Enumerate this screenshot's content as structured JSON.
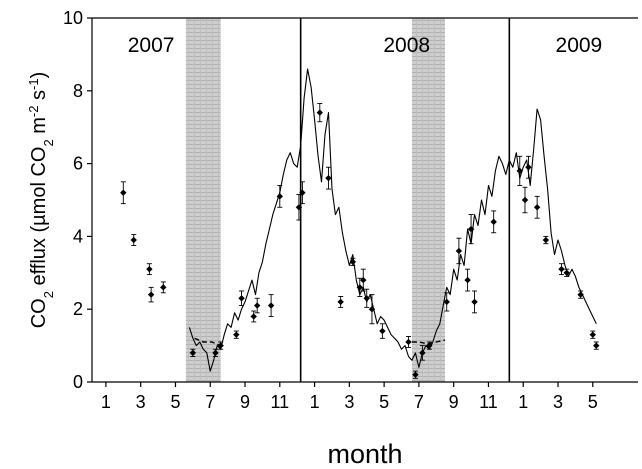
{
  "chart_data": {
    "type": "line",
    "xlabel": "month",
    "ylabel_parts": {
      "a": "CO",
      "b": "2",
      "c": " efflux (",
      "mu": "µ",
      "d": "mol CO",
      "e": "2",
      "f": " m",
      "g": "-2",
      "h": " s",
      "i": "-1",
      "j": ")"
    },
    "x_tick_labels": [
      "1",
      "3",
      "5",
      "7",
      "9",
      "11",
      "1",
      "3",
      "5",
      "7",
      "9",
      "11",
      "1",
      "3",
      "5"
    ],
    "x_ticks": [
      1,
      3,
      5,
      7,
      9,
      11,
      13,
      15,
      17,
      19,
      21,
      23,
      25,
      27,
      29
    ],
    "xlim": [
      0.2,
      31.6
    ],
    "ylim": [
      0,
      10
    ],
    "y_ticks": [
      0,
      2,
      4,
      6,
      8,
      10
    ],
    "grid": false,
    "year_labels": [
      {
        "text": "2007",
        "x": 3.6
      },
      {
        "text": "2008",
        "x": 18.3
      },
      {
        "text": "2009",
        "x": 28.2
      }
    ],
    "year_dividers": [
      12.2,
      24.2
    ],
    "snow_periods": [
      [
        5.6,
        7.6
      ],
      [
        18.6,
        20.5
      ]
    ],
    "colors": {
      "line": "#000000",
      "points": "#000000",
      "shade": "#b4b4b4"
    },
    "series": [
      {
        "style": "line",
        "x": [
          5.8,
          6.0,
          6.2,
          6.4,
          6.6,
          6.8,
          7.0,
          7.2,
          7.4,
          7.6,
          7.8,
          8.0,
          8.2,
          8.4,
          8.6,
          8.8,
          9.0,
          9.2,
          9.4,
          9.6,
          9.8,
          10.0,
          10.2,
          10.4,
          10.6,
          10.8,
          11.0,
          11.2,
          11.4,
          11.6,
          11.8,
          12.0,
          12.2,
          12.4,
          12.6,
          12.8,
          13.0,
          13.2,
          13.4,
          13.6,
          13.8,
          14.0,
          14.2,
          14.4,
          14.6,
          14.8,
          15.0,
          15.2,
          15.4,
          15.6,
          15.8,
          16.0,
          16.2,
          16.4,
          16.6,
          16.8,
          17.0,
          17.2,
          17.4,
          17.6,
          17.8,
          18.0,
          18.2,
          18.4,
          18.6,
          18.8,
          19.0,
          19.2,
          19.4,
          19.6,
          19.8,
          20.0,
          20.2,
          20.4,
          20.6,
          20.8,
          21.0,
          21.2,
          21.4,
          21.6,
          21.8,
          22.0,
          22.2,
          22.4,
          22.6,
          22.8,
          23.0,
          23.2,
          23.4,
          23.6,
          23.8,
          24.0,
          24.2,
          24.4,
          24.6,
          24.8,
          25.0,
          25.2,
          25.4,
          25.6,
          25.8,
          26.0,
          26.2,
          26.4,
          26.6,
          26.8,
          27.0,
          27.2,
          27.4,
          27.6,
          27.8,
          28.0,
          28.2,
          28.4,
          28.6,
          28.8,
          29.0,
          29.2
        ],
        "y": [
          1.5,
          1.2,
          1.0,
          1.1,
          0.9,
          0.8,
          0.3,
          0.6,
          1.0,
          0.9,
          1.3,
          1.6,
          1.5,
          1.9,
          1.7,
          2.0,
          2.2,
          2.5,
          2.8,
          2.4,
          3.0,
          3.3,
          3.8,
          4.2,
          4.6,
          4.9,
          5.2,
          5.7,
          6.1,
          6.3,
          6.0,
          5.9,
          6.5,
          7.8,
          8.6,
          8.1,
          7.2,
          6.2,
          5.5,
          6.8,
          7.4,
          5.3,
          4.6,
          4.8,
          4.1,
          3.6,
          3.2,
          3.5,
          2.8,
          2.4,
          2.6,
          2.2,
          2.4,
          2.0,
          1.6,
          1.8,
          1.7,
          1.5,
          1.3,
          1.2,
          1.1,
          0.9,
          1.0,
          0.7,
          0.6,
          0.8,
          0.4,
          0.8,
          1.0,
          0.9,
          1.1,
          1.4,
          1.6,
          2.1,
          2.6,
          2.4,
          3.1,
          2.8,
          3.5,
          3.2,
          4.2,
          3.8,
          4.6,
          4.3,
          5.0,
          4.6,
          5.4,
          5.1,
          5.8,
          6.2,
          6.0,
          5.7,
          6.1,
          5.9,
          6.3,
          5.6,
          5.9,
          6.1,
          5.4,
          6.4,
          7.5,
          7.2,
          6.2,
          5.3,
          4.1,
          3.5,
          3.9,
          3.6,
          3.2,
          2.9,
          3.1,
          2.9,
          2.6,
          2.4,
          2.2,
          2.0,
          1.8,
          1.6
        ]
      },
      {
        "style": "dashed",
        "x": [
          6.1,
          6.6,
          7.1,
          7.6,
          18.6,
          19.0,
          19.5,
          20.0,
          20.5
        ],
        "y": [
          1.2,
          1.1,
          1.1,
          1.0,
          1.1,
          1.1,
          1.05,
          1.1,
          1.15
        ]
      },
      {
        "style": "points",
        "x": [
          2.0,
          2.6,
          3.5,
          3.6,
          4.3,
          6.0,
          7.3,
          7.6,
          8.5,
          8.8,
          9.5,
          9.7,
          10.5,
          11.0,
          12.1,
          12.3,
          13.3,
          13.8,
          14.5,
          15.2,
          15.6,
          15.8,
          16.0,
          16.3,
          16.9,
          18.4,
          18.8,
          19.2,
          19.6,
          20.6,
          21.3,
          21.8,
          22.0,
          22.2,
          23.3,
          24.8,
          25.1,
          25.3,
          25.8,
          26.3,
          27.2,
          27.5,
          28.3,
          29.0,
          29.2
        ],
        "y": [
          5.2,
          3.9,
          3.1,
          2.4,
          2.6,
          0.8,
          0.8,
          1.0,
          1.3,
          2.3,
          1.8,
          2.1,
          2.1,
          5.1,
          4.8,
          5.2,
          7.4,
          5.6,
          2.2,
          3.3,
          2.6,
          2.8,
          2.3,
          2.0,
          1.4,
          1.1,
          0.2,
          0.8,
          1.0,
          2.2,
          3.6,
          2.8,
          4.2,
          2.2,
          4.4,
          5.8,
          5.0,
          5.9,
          4.8,
          3.9,
          3.1,
          3.0,
          2.4,
          1.3,
          1.0
        ],
        "err": [
          0.3,
          0.15,
          0.15,
          0.2,
          0.15,
          0.1,
          0.1,
          0.1,
          0.1,
          0.2,
          0.15,
          0.2,
          0.3,
          0.3,
          0.35,
          0.3,
          0.25,
          0.3,
          0.15,
          0.1,
          0.25,
          0.3,
          0.25,
          0.4,
          0.2,
          0.15,
          0.1,
          0.2,
          0.1,
          0.25,
          0.35,
          0.3,
          0.4,
          0.3,
          0.3,
          0.4,
          0.35,
          0.3,
          0.3,
          0.1,
          0.15,
          0.1,
          0.1,
          0.1,
          0.1
        ]
      }
    ]
  }
}
